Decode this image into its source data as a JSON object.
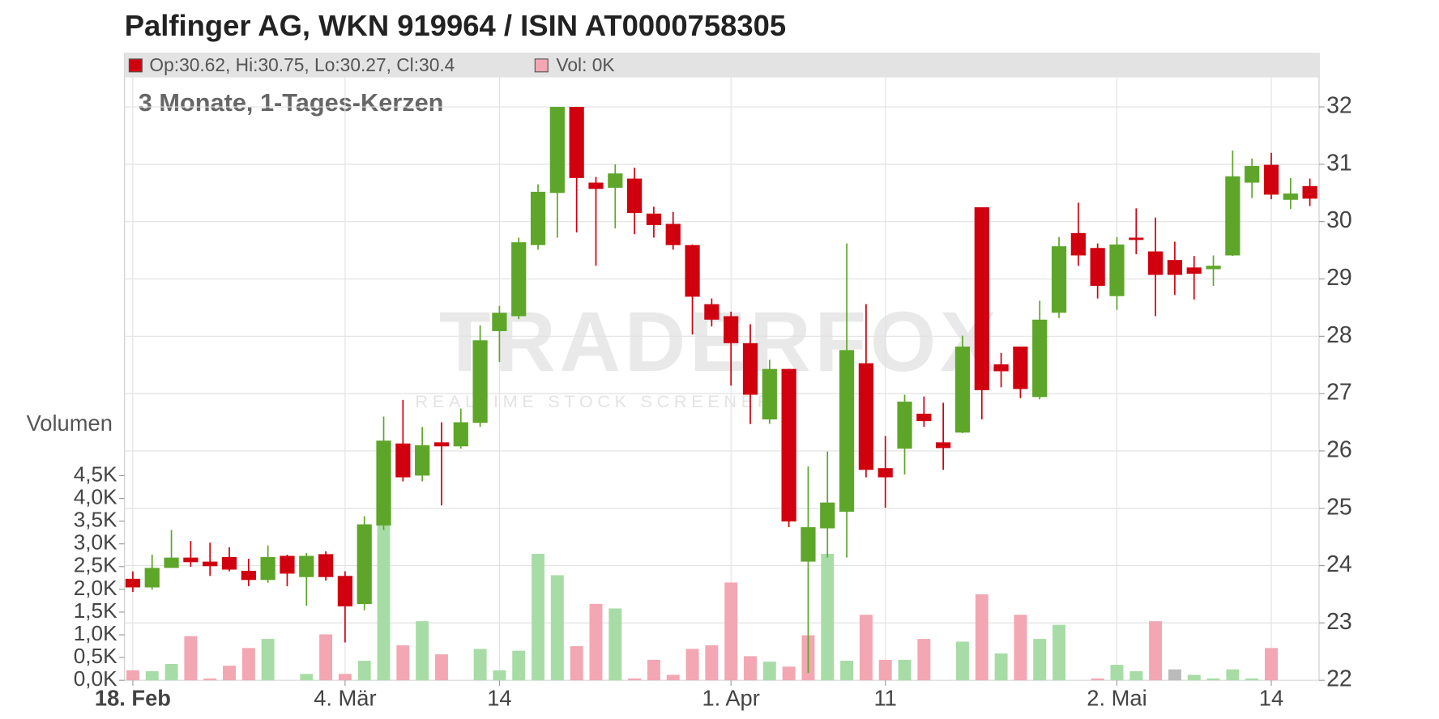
{
  "chart_data": {
    "type": "candlestick",
    "title": "Palfinger AG, WKN 919964 / ISIN AT0000758305",
    "subtitle": "3 Monate, 1-Tages-Kerzen",
    "legend": [
      "Op:30.62, Hi:30.75, Lo:30.27, Cl:30.4",
      "Vol: 0K"
    ],
    "volume_axis_label": "Volumen",
    "watermark": [
      "TRADERFOX",
      "REALTIME STOCK SCREENER"
    ],
    "categories": [
      "18. Feb",
      null,
      null,
      null,
      null,
      null,
      null,
      null,
      null,
      null,
      null,
      "4. Mär",
      null,
      null,
      null,
      null,
      null,
      null,
      null,
      "14",
      null,
      null,
      null,
      null,
      null,
      null,
      null,
      null,
      null,
      null,
      null,
      "1. Apr",
      null,
      null,
      null,
      null,
      null,
      null,
      null,
      "11",
      null,
      null,
      null,
      null,
      null,
      null,
      null,
      null,
      null,
      null,
      null,
      "2. Mai",
      null,
      null,
      null,
      null,
      null,
      null,
      null,
      "14",
      null,
      null
    ],
    "open": [
      23.77,
      23.62,
      23.96,
      24.14,
      24.07,
      24.15,
      23.91,
      23.75,
      24.17,
      23.8,
      24.2,
      23.82,
      23.33,
      24.7,
      26.13,
      25.57,
      26.15,
      26.08,
      26.49,
      28.09,
      28.35,
      29.59,
      30.5,
      32,
      30.68,
      30.59,
      30.75,
      30.14,
      29.96,
      29.59,
      28.56,
      28.35,
      27.88,
      26.55,
      27.43,
      24.07,
      24.65,
      24.94,
      27.53,
      25.7,
      26.04,
      26.65,
      26.15,
      26.32,
      30.25,
      27.51,
      27.82,
      26.94,
      28.41,
      29.8,
      29.54,
      28.7,
      29.72,
      29.48,
      29.33,
      29.2,
      29.17,
      29.41,
      30.68,
      30.99,
      30.38,
      30.62
    ],
    "high": [
      23.9,
      24.19,
      24.62,
      24.43,
      24.4,
      24.32,
      24.12,
      24.35,
      24.19,
      24.22,
      24.25,
      23.9,
      24.86,
      26.6,
      26.89,
      26.42,
      26.5,
      26.74,
      28.19,
      28.53,
      29.72,
      30.65,
      32,
      32,
      30.78,
      31,
      30.94,
      30.26,
      30.17,
      29.6,
      28.66,
      28.43,
      28.21,
      27.59,
      27.43,
      25.73,
      25.99,
      29.62,
      28.56,
      26.26,
      26.98,
      26.95,
      26.84,
      28.01,
      30.25,
      27.71,
      27.82,
      28.62,
      29.73,
      30.33,
      29.62,
      29.73,
      30.23,
      30.07,
      29.65,
      29.4,
      29.41,
      31.24,
      31.1,
      31.2,
      30.76,
      30.75
    ],
    "low": [
      23.54,
      23.58,
      23.96,
      23.98,
      23.82,
      23.9,
      23.64,
      23.7,
      23.64,
      23.3,
      23.74,
      22.66,
      23.22,
      24.62,
      25.47,
      25.47,
      25.05,
      26.04,
      26.42,
      27.55,
      28.3,
      29.51,
      29.72,
      29.81,
      29.23,
      29.88,
      29.78,
      29.72,
      29.51,
      28.03,
      28.17,
      27.14,
      26.47,
      26.47,
      24.67,
      22.13,
      24.14,
      24.14,
      25.54,
      25.01,
      25.59,
      26.42,
      25.67,
      26.31,
      26.55,
      27.11,
      26.92,
      26.9,
      28.32,
      29.23,
      28.66,
      28.46,
      29.43,
      28.35,
      28.72,
      28.64,
      28.88,
      29.4,
      30.41,
      30.39,
      30.22,
      30.27
    ],
    "close": [
      23.62,
      23.96,
      24.14,
      24.06,
      23.99,
      23.93,
      23.75,
      24.15,
      23.86,
      24.17,
      23.8,
      23.29,
      24.72,
      26.18,
      25.54,
      26.1,
      26.08,
      26.5,
      27.93,
      28.41,
      29.64,
      30.52,
      32,
      30.76,
      30.57,
      30.84,
      30.15,
      29.94,
      29.59,
      28.69,
      28.29,
      27.88,
      26.98,
      27.43,
      24.77,
      24.67,
      25.1,
      27.76,
      25.67,
      25.54,
      26.86,
      26.52,
      26.05,
      27.82,
      27.06,
      27.39,
      27.08,
      28.29,
      29.57,
      29.41,
      28.88,
      29.6,
      29.68,
      29.07,
      29.07,
      29.09,
      29.23,
      30.79,
      30.97,
      30.47,
      30.49,
      30.4
    ],
    "volume": [
      220,
      200,
      360,
      970,
      40,
      320,
      710,
      910,
      0,
      140,
      1010,
      140,
      430,
      3410,
      770,
      1300,
      570,
      0,
      690,
      220,
      650,
      2780,
      2310,
      750,
      1680,
      1580,
      40,
      450,
      120,
      690,
      770,
      2150,
      530,
      410,
      300,
      990,
      2780,
      430,
      1440,
      450,
      450,
      910,
      0,
      850,
      1890,
      590,
      1440,
      910,
      1220,
      0,
      40,
      340,
      200,
      1300,
      240,
      120,
      40,
      240,
      40,
      710,
      0,
      0
    ],
    "ylim": [
      22,
      32
    ],
    "yticks": [
      22,
      23,
      24,
      25,
      26,
      27,
      28,
      29,
      30,
      31,
      32
    ],
    "volume_lim": [
      0,
      4500
    ],
    "volume_ticks": [
      {
        "value": 0,
        "label": "0,0K"
      },
      {
        "value": 500,
        "label": "0,5K"
      },
      {
        "value": 1000,
        "label": "1,0K"
      },
      {
        "value": 1500,
        "label": "1,5K"
      },
      {
        "value": 2000,
        "label": "2,0K"
      },
      {
        "value": 2500,
        "label": "2,5K"
      },
      {
        "value": 3000,
        "label": "3,0K"
      },
      {
        "value": 3500,
        "label": "3,5K"
      },
      {
        "value": 4000,
        "label": "4,0K"
      },
      {
        "value": 4500,
        "label": "4,5K"
      }
    ],
    "up_color": "#5ea62a",
    "down_color": "#d0000f",
    "volume_up_color": "#a8dca6",
    "volume_down_color": "#f2a7b2",
    "volume_flat_color": "#bbbbbb",
    "grid": true
  }
}
